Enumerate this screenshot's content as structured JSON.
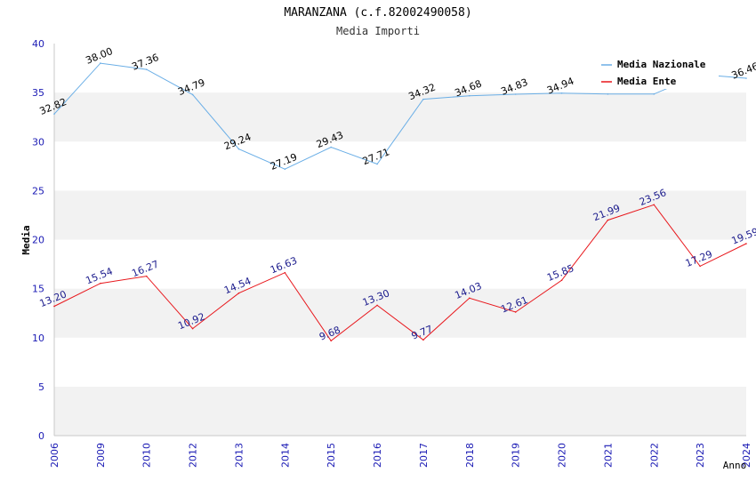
{
  "chart_data": {
    "type": "line",
    "title": "MARANZANA (c.f.82002490058)",
    "subtitle": "Media Importi",
    "xlabel": "Anno",
    "ylabel": "Media",
    "ylim": [
      0,
      40
    ],
    "yticks": [
      0,
      5,
      10,
      15,
      20,
      25,
      30,
      35,
      40
    ],
    "grid": "horizontal alternating bands",
    "legend_position": "top-right",
    "categories": [
      "2006",
      "2009",
      "2010",
      "2012",
      "2013",
      "2014",
      "2015",
      "2016",
      "2017",
      "2018",
      "2019",
      "2020",
      "2021",
      "2022",
      "2023",
      "2024"
    ],
    "series": [
      {
        "name": "Media Nazionale",
        "color": "#6aaee6",
        "label_color": "#000000",
        "values": [
          32.82,
          38.0,
          37.36,
          34.79,
          29.24,
          27.19,
          29.43,
          27.71,
          34.32,
          34.68,
          34.83,
          34.94,
          34.85,
          34.85,
          36.85,
          36.46
        ],
        "labels": [
          "32.82",
          "38.00",
          "37.36",
          "34.79",
          "29.24",
          "27.19",
          "29.43",
          "27.71",
          "34.32",
          "34.68",
          "34.83",
          "34.94",
          "",
          "",
          "",
          "36.46"
        ]
      },
      {
        "name": "Media Ente",
        "color": "#e8161b",
        "label_color": "#1a1a8c",
        "values": [
          13.2,
          15.54,
          16.27,
          10.92,
          14.54,
          16.63,
          9.68,
          13.3,
          9.77,
          14.03,
          12.61,
          15.85,
          21.99,
          23.56,
          17.29,
          19.59
        ],
        "labels": [
          "13.20",
          "15.54",
          "16.27",
          "10.92",
          "14.54",
          "16.63",
          "9.68",
          "13.30",
          "9.77",
          "14.03",
          "12.61",
          "15.85",
          "21.99",
          "23.56",
          "17.29",
          "19.59"
        ]
      }
    ]
  },
  "colors": {
    "band": "#f2f2f2",
    "axis_text": "#1a1ab4",
    "axis_line": "#c8c8c8",
    "title": "#000000",
    "subtitle": "#333333"
  }
}
